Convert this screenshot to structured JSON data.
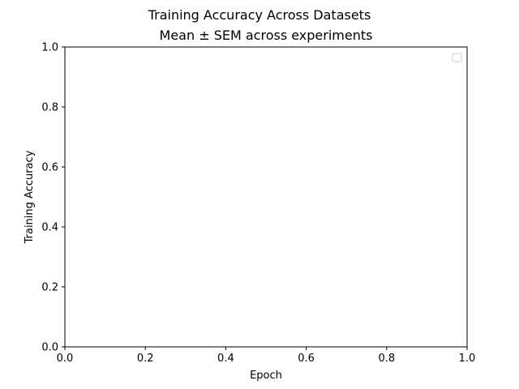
{
  "chart_data": {
    "type": "line",
    "title": "Training Accuracy Across Datasets",
    "subtitle": "Mean ± SEM across experiments",
    "xlabel": "Epoch",
    "ylabel": "Training Accuracy",
    "xlim": [
      0.0,
      1.0
    ],
    "ylim": [
      0.0,
      1.0
    ],
    "xticks": [
      "0.0",
      "0.2",
      "0.4",
      "0.6",
      "0.8",
      "1.0"
    ],
    "yticks": [
      "0.0",
      "0.2",
      "0.4",
      "0.6",
      "0.8",
      "1.0"
    ],
    "grid": false,
    "legend": {
      "placement": "top-right",
      "entries": []
    },
    "series": []
  }
}
